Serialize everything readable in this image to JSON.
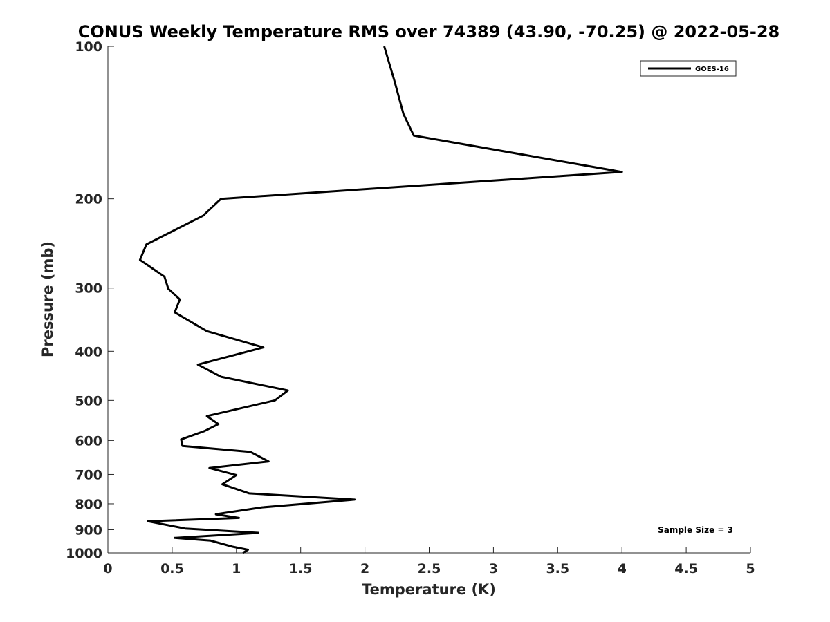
{
  "chart_data": {
    "type": "line",
    "title": "CONUS Weekly Temperature RMS over 74389 (43.90, -70.25) @ 2022-05-28",
    "xlabel": "Temperature (K)",
    "ylabel": "Pressure (mb)",
    "xlim": [
      0,
      5
    ],
    "ylim": [
      100,
      1000
    ],
    "y_scale": "log",
    "y_reversed": true,
    "x_ticks": [
      0,
      0.5,
      1,
      1.5,
      2,
      2.5,
      3,
      3.5,
      4,
      4.5,
      5
    ],
    "x_tick_labels": [
      "0",
      "0.5",
      "1",
      "1.5",
      "2",
      "2.5",
      "3",
      "3.5",
      "4",
      "4.5",
      "5"
    ],
    "y_ticks": [
      100,
      200,
      300,
      400,
      500,
      600,
      700,
      800,
      900,
      1000
    ],
    "y_tick_labels": [
      "100",
      "200",
      "300",
      "400",
      "500",
      "600",
      "700",
      "800",
      "900",
      "1000"
    ],
    "grid": false,
    "legend": {
      "placement": "top-right",
      "entries": [
        "GOES-16"
      ]
    },
    "annotation": "Sample Size = 3",
    "series": [
      {
        "name": "GOES-16",
        "color": "#000000",
        "points": [
          [
            2.15,
            100
          ],
          [
            2.23,
            117
          ],
          [
            2.3,
            136
          ],
          [
            2.38,
            150
          ],
          [
            4.0,
            177
          ],
          [
            0.88,
            200
          ],
          [
            0.74,
            216
          ],
          [
            0.3,
            246
          ],
          [
            0.25,
            264
          ],
          [
            0.44,
            285
          ],
          [
            0.47,
            301
          ],
          [
            0.56,
            316
          ],
          [
            0.52,
            335
          ],
          [
            0.77,
            365
          ],
          [
            1.21,
            393
          ],
          [
            0.7,
            425
          ],
          [
            0.88,
            449
          ],
          [
            1.4,
            478
          ],
          [
            1.3,
            500
          ],
          [
            0.77,
            537
          ],
          [
            0.86,
            557
          ],
          [
            0.75,
            575
          ],
          [
            0.57,
            597
          ],
          [
            0.58,
            615
          ],
          [
            1.11,
            632
          ],
          [
            1.25,
            660
          ],
          [
            0.79,
            680
          ],
          [
            1.0,
            702
          ],
          [
            0.89,
            732
          ],
          [
            1.1,
            763
          ],
          [
            1.92,
            785
          ],
          [
            1.2,
            813
          ],
          [
            0.84,
            839
          ],
          [
            1.02,
            853
          ],
          [
            0.31,
            866
          ],
          [
            0.6,
            895
          ],
          [
            1.17,
            913
          ],
          [
            0.52,
            934
          ],
          [
            0.8,
            946
          ],
          [
            0.97,
            972
          ],
          [
            1.09,
            986
          ],
          [
            1.05,
            1000
          ]
        ]
      }
    ]
  }
}
